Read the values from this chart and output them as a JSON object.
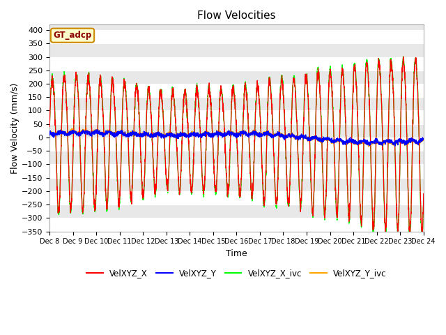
{
  "title": "Flow Velocities",
  "xlabel": "Time",
  "ylabel": "Flow Velocity (mm/s)",
  "ylim": [
    -350,
    420
  ],
  "yticks": [
    -350,
    -300,
    -250,
    -200,
    -150,
    -100,
    -50,
    0,
    50,
    100,
    150,
    200,
    250,
    300,
    350,
    400
  ],
  "annotation": "GT_adcp",
  "plot_bg_color": "#e8e8e8",
  "grid_color": "white",
  "series_colors": {
    "VelXYZ_X": "red",
    "VelXYZ_Y": "blue",
    "VelXYZ_X_ivc": "#00ff00",
    "VelXYZ_Y_ivc": "orange"
  },
  "day_start": 8,
  "day_end": 24,
  "freq_semi_per_day": 1.93
}
